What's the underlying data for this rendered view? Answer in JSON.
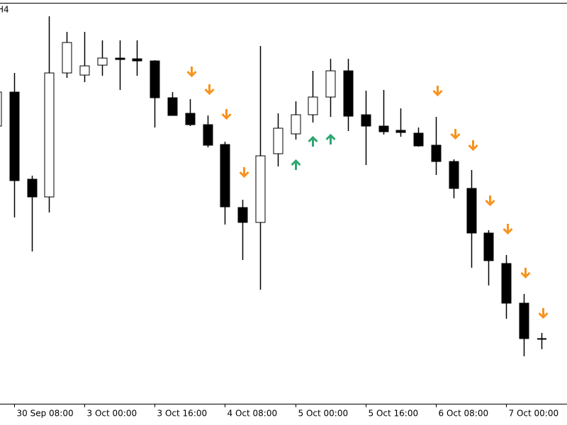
{
  "chart_data": {
    "type": "candlestick",
    "timeframe": "H4",
    "categories": [
      null,
      "30 Sep 08:00",
      null,
      null,
      null,
      "3 Oct 00:00",
      null,
      null,
      null,
      "3 Oct 16:00",
      null,
      null,
      null,
      "4 Oct 08:00",
      null,
      null,
      null,
      "5 Oct 00:00",
      null,
      null,
      null,
      "5 Oct 16:00",
      null,
      null,
      null,
      "6 Oct 08:00",
      null,
      null,
      null,
      "7 Oct 00:00",
      null,
      null
    ],
    "open": [
      392,
      440,
      317,
      292,
      467,
      464,
      478,
      488,
      487,
      484,
      432,
      410,
      394,
      366,
      277,
      256,
      353,
      381,
      408,
      433,
      470,
      408,
      392,
      386,
      382,
      365,
      342,
      304,
      241,
      198,
      142,
      92
    ],
    "high": [
      440,
      467,
      322,
      547,
      525,
      525,
      513,
      513,
      513,
      485,
      440,
      430,
      407,
      370,
      288,
      505,
      410,
      427,
      470,
      487,
      487,
      442,
      443,
      417,
      390,
      405,
      345,
      330,
      245,
      210,
      155,
      100
    ],
    "low": [
      392,
      263,
      215,
      270,
      460,
      454,
      463,
      443,
      463,
      390,
      407,
      392,
      362,
      253,
      203,
      161,
      335,
      373,
      397,
      405,
      385,
      337,
      380,
      377,
      363,
      323,
      290,
      192,
      167,
      120,
      67,
      77
    ],
    "close": [
      440,
      315,
      292,
      467,
      510,
      477,
      488,
      486,
      484,
      432,
      407,
      394,
      365,
      278,
      256,
      350,
      389,
      408,
      433,
      470,
      406,
      392,
      384,
      383,
      364,
      342,
      304,
      241,
      202,
      142,
      92,
      91
    ],
    "sell_signals": [
      null,
      null,
      null,
      null,
      null,
      null,
      null,
      null,
      null,
      null,
      null,
      469,
      444,
      409,
      327,
      null,
      null,
      null,
      null,
      null,
      null,
      null,
      null,
      null,
      null,
      442,
      381,
      365,
      287,
      247,
      185,
      128
    ],
    "buy_signals": [
      null,
      null,
      null,
      null,
      null,
      null,
      null,
      null,
      null,
      null,
      null,
      null,
      null,
      null,
      null,
      null,
      null,
      337,
      370,
      373,
      null,
      null,
      null,
      null,
      null,
      null,
      null,
      null,
      null,
      null,
      null,
      null
    ],
    "sell_color": "#f7931e",
    "buy_color": "#2ea66f",
    "up_color": "#ffffff",
    "down_color": "#000000",
    "ylim": [
      0,
      565
    ]
  }
}
